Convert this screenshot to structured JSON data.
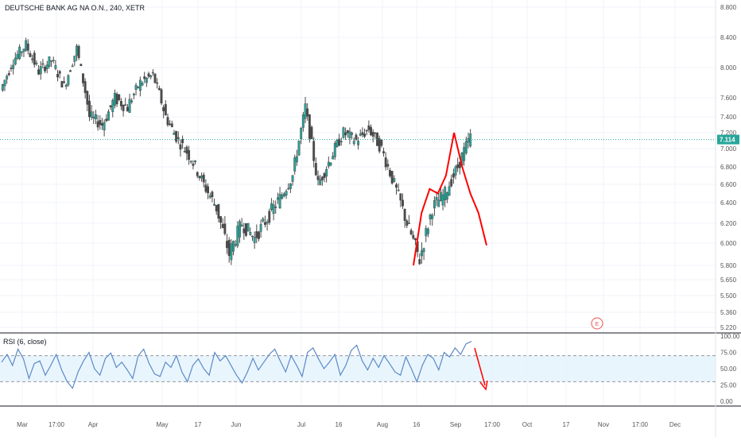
{
  "title": "DEUTSCHE BANK AG NA O.N., 240, XETR",
  "rsi_label": "RSI (6, close)",
  "last_price_label": "7.114",
  "earnings_marker": "E",
  "colors": {
    "up": "#26a69a",
    "down": "#ef5350",
    "candle_body": "#4a4a4a",
    "drawing": "#ff0000",
    "rsi_line": "#5b8ac6",
    "rsi_band": "#e3f2fd",
    "price_line": "#26a69a",
    "axis_text": "#555555"
  },
  "chart_data": [
    {
      "type": "candlestick",
      "title": "DEUTSCHE BANK AG NA O.N., 240, XETR",
      "price_axis_ticks": [
        "8.800",
        "8.400",
        "8.000",
        "7.600",
        "7.400",
        "7.200",
        "7.000",
        "6.800",
        "6.600",
        "6.400",
        "6.200",
        "6.000",
        "5.800",
        "5.650",
        "5.500",
        "5.360",
        "5.220"
      ],
      "time_axis_ticks": [
        "Mar",
        "17:00",
        "Apr",
        "May",
        "17",
        "Jun",
        "Jul",
        "16",
        "Aug",
        "16",
        "Sep",
        "17:00",
        "Oct",
        "17",
        "Nov",
        "17:00",
        "Dec"
      ],
      "last_price": 7.114,
      "price_path": [
        [
          "Mar",
          7.7
        ],
        [
          "Mar 5",
          8.1
        ],
        [
          "Mar 9",
          8.3
        ],
        [
          "Mar 13",
          7.95
        ],
        [
          "Mar 17",
          8.1
        ],
        [
          "Mar 21",
          7.75
        ],
        [
          "Mar 25",
          8.25
        ],
        [
          "Mar 29",
          7.4
        ],
        [
          "Apr",
          7.3
        ],
        [
          "Apr 6",
          7.6
        ],
        [
          "Apr 12",
          7.5
        ],
        [
          "Apr 18",
          7.8
        ],
        [
          "Apr 24",
          7.9
        ],
        [
          "May",
          7.4
        ],
        [
          "May 7",
          7.1
        ],
        [
          "May 12",
          6.9
        ],
        [
          "May 17",
          6.6
        ],
        [
          "May 22",
          6.35
        ],
        [
          "Jun",
          5.9
        ],
        [
          "Jun 6",
          6.2
        ],
        [
          "Jun 11",
          6.05
        ],
        [
          "Jun 16",
          6.25
        ],
        [
          "Jun 21",
          6.45
        ],
        [
          "Jun 26",
          6.7
        ],
        [
          "Jul",
          7.5
        ],
        [
          "Jul 6",
          6.6
        ],
        [
          "Jul 11",
          6.9
        ],
        [
          "Jul 16",
          7.2
        ],
        [
          "Jul 21",
          7.1
        ],
        [
          "Jul 26",
          7.25
        ],
        [
          "Aug",
          7.0
        ],
        [
          "Aug 6",
          6.6
        ],
        [
          "Aug 11",
          6.2
        ],
        [
          "Aug 16",
          5.85
        ],
        [
          "Aug 21",
          6.35
        ],
        [
          "Aug 26",
          6.5
        ],
        [
          "Sep",
          6.8
        ],
        [
          "Sep 5",
          7.15
        ]
      ],
      "projected_path": [
        [
          "Aug 16",
          5.8
        ],
        [
          "Aug 21",
          6.3
        ],
        [
          "Aug 26",
          6.55
        ],
        [
          "Aug 31",
          6.5
        ],
        [
          "Sep 3",
          6.7
        ],
        [
          "Sep 5",
          7.2
        ],
        [
          "Sep 7",
          6.8
        ],
        [
          "Sep 9",
          6.5
        ],
        [
          "Sep 11",
          6.3
        ],
        [
          "Sep 12",
          5.98
        ]
      ]
    },
    {
      "type": "line",
      "name": "RSI (6, close)",
      "ticks": [
        "100.00",
        "75.00",
        "50.00",
        "25.00",
        "0.00"
      ],
      "band": [
        30,
        70
      ],
      "ylim": [
        0,
        100
      ],
      "values": [
        60,
        72,
        55,
        80,
        65,
        35,
        58,
        62,
        40,
        55,
        72,
        48,
        30,
        20,
        45,
        62,
        75,
        50,
        40,
        66,
        74,
        52,
        60,
        48,
        35,
        70,
        80,
        58,
        42,
        38,
        60,
        52,
        70,
        45,
        30,
        55,
        65,
        50,
        40,
        75,
        62,
        70,
        55,
        40,
        28,
        45,
        66,
        48,
        60,
        72,
        80,
        62,
        45,
        70,
        55,
        38,
        75,
        82,
        65,
        50,
        60,
        72,
        40,
        55,
        78,
        86,
        62,
        48,
        66,
        52,
        70,
        58,
        45,
        40,
        68,
        50,
        30,
        55,
        72,
        66,
        48,
        75,
        68,
        82,
        72,
        88,
        92
      ]
    }
  ]
}
